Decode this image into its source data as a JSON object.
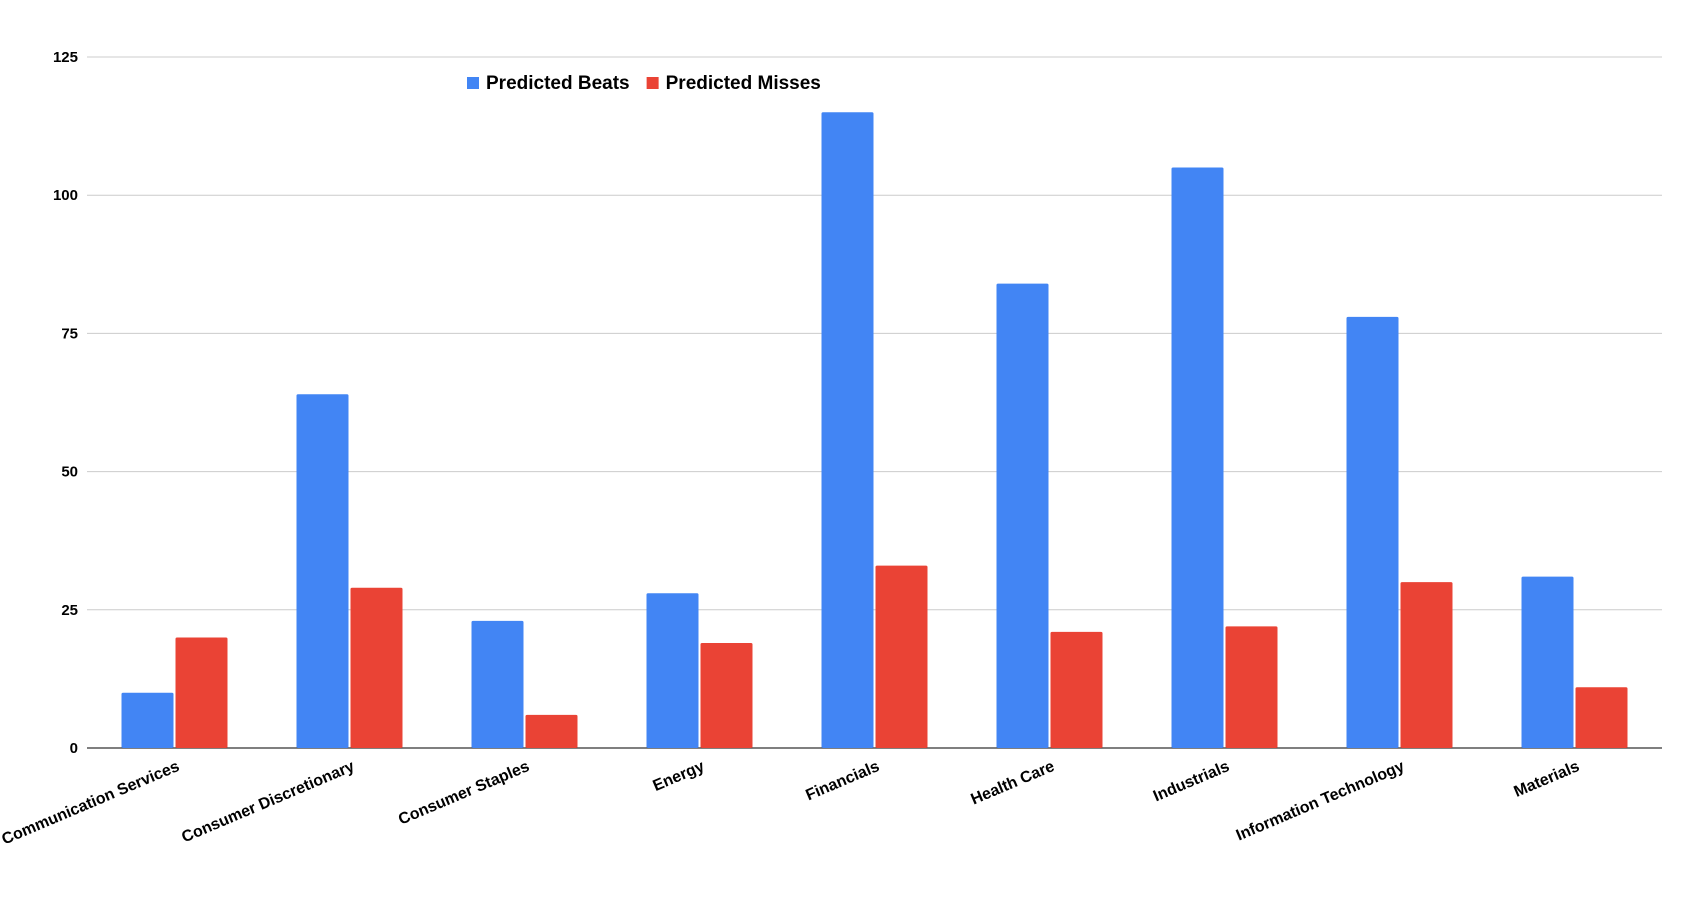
{
  "chart_data": {
    "type": "bar",
    "title": "",
    "xlabel": "",
    "ylabel": "",
    "categories": [
      "Communication Services",
      "Consumer Discretionary",
      "Consumer Staples",
      "Energy",
      "Financials",
      "Health Care",
      "Industrials",
      "Information Technology",
      "Materials"
    ],
    "series": [
      {
        "name": "Predicted Beats",
        "color": "#4285f4",
        "values": [
          10,
          64,
          23,
          28,
          115,
          84,
          105,
          78,
          31
        ]
      },
      {
        "name": "Predicted Misses",
        "color": "#ea4335",
        "values": [
          20,
          29,
          6,
          19,
          33,
          21,
          22,
          30,
          11
        ]
      }
    ],
    "ylim": [
      0,
      125
    ],
    "yticks": [
      "0",
      "25",
      "50",
      "75",
      "100",
      "125"
    ],
    "grid": true,
    "legend_position": "top"
  }
}
